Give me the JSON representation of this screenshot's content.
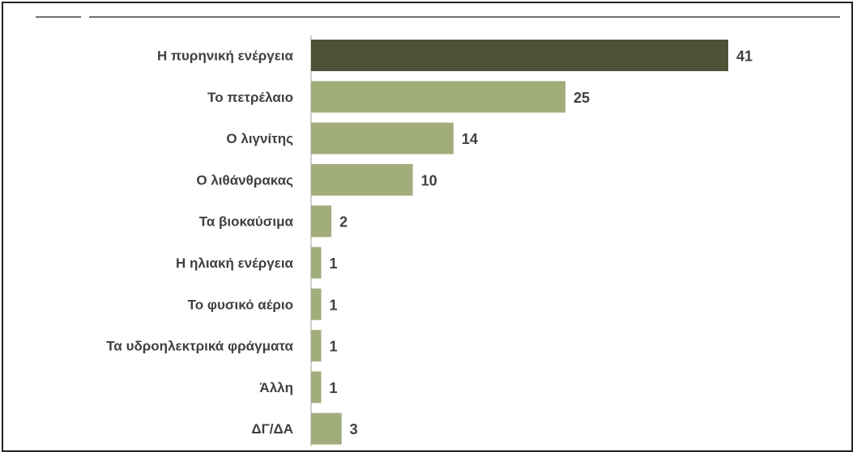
{
  "chart_data": {
    "type": "bar",
    "orientation": "horizontal",
    "categories": [
      "Η πυρηνική ενέργεια",
      "Το πετρέλαιο",
      "Ο λιγνίτης",
      "Ο λιθάνθρακας",
      "Τα βιοκαύσιμα",
      "Η ηλιακή ενέργεια",
      "Το φυσικό αέριο",
      "Τα υδροηλεκτρικά φράγματα",
      "Άλλη",
      "ΔΓ/ΔΑ"
    ],
    "values": [
      41,
      25,
      14,
      10,
      2,
      1,
      1,
      1,
      1,
      3
    ],
    "value_labels": [
      "41",
      "25",
      "14",
      "10",
      "2",
      "1",
      "1",
      "1",
      "1",
      "3"
    ],
    "xlim": [
      0,
      41
    ],
    "grid": false,
    "legend": "none",
    "colors": {
      "highlight": "#4f5236",
      "default": "#a2ad7c",
      "axis": "#bfbfbf",
      "text": "#404040"
    }
  }
}
